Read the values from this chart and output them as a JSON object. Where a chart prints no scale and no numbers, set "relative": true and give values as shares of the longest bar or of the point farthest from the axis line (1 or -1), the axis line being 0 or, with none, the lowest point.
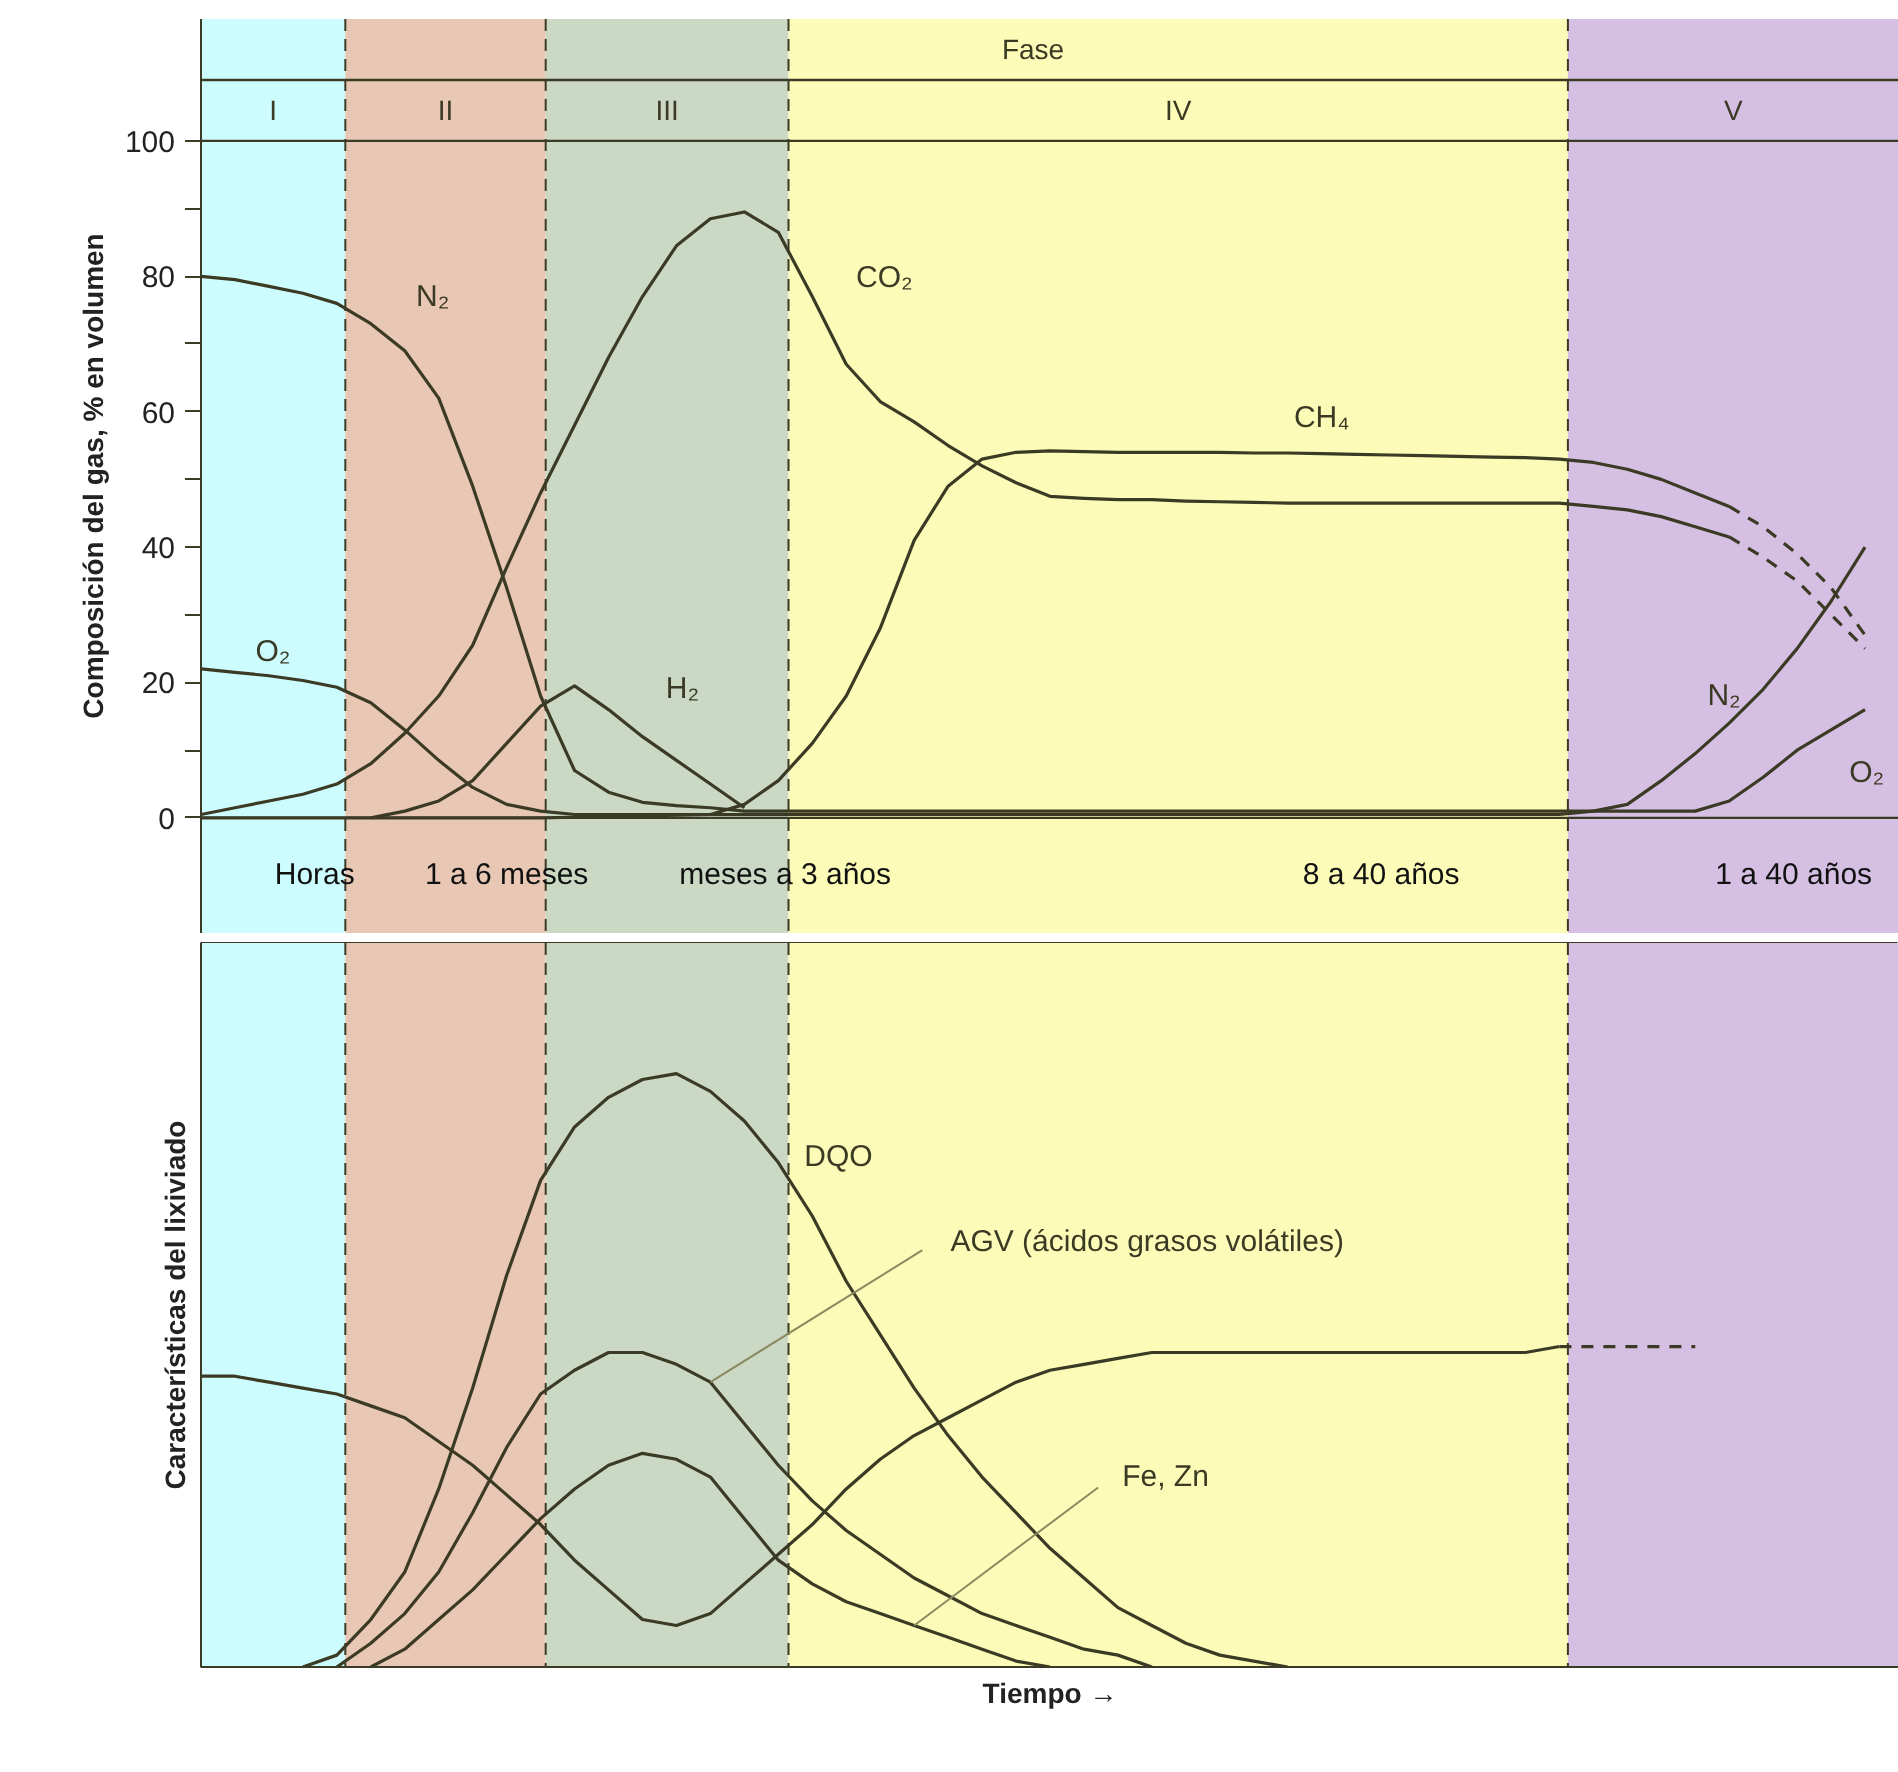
{
  "chart_data": [
    {
      "type": "line",
      "ylabel": "Composición del gas, % en volumen",
      "categories": [
        null,
        null,
        null,
        null,
        null,
        null,
        null,
        null,
        null,
        null,
        null,
        null,
        null,
        null,
        null,
        null,
        null,
        null,
        null,
        null,
        null,
        null,
        null,
        null,
        null,
        null,
        null,
        null,
        null,
        null,
        null,
        null,
        null,
        null,
        null,
        null,
        null,
        null,
        null,
        null,
        null,
        null,
        null,
        null,
        null,
        null,
        null,
        null,
        null,
        null,
        null
      ],
      "ylim": [
        -17,
        118
      ],
      "yticks": [
        0,
        {
          "value": 10,
          "label": null
        },
        20,
        {
          "value": 30,
          "label": null
        },
        40,
        {
          "value": 50,
          "label": null
        },
        60,
        {
          "value": 70,
          "label": null
        },
        80,
        {
          "value": 90,
          "label": null
        },
        100
      ],
      "tick_labels": "y",
      "grid": false,
      "marker": "none",
      "ref_lines": [
        {
          "axis": "y",
          "value": 100,
          "color": "#3b3a24"
        },
        {
          "axis": "y",
          "value": 109,
          "color": "#3b3a24"
        },
        {
          "axis": "y",
          "value": 0,
          "color": "#3b3a24"
        }
      ],
      "series": [
        {
          "name": "O₂",
          "color": "#3b3a24",
          "line_style": "solid",
          "values": [
            22,
            21.5,
            21,
            20.3,
            19.3,
            17,
            13,
            8.5,
            4.5,
            2,
            1,
            0.5,
            0.5,
            0.5,
            0.5,
            0.5,
            0.5,
            0.5,
            0.5,
            0.5,
            0.5,
            0.5,
            0.5,
            0.5,
            0.5,
            0.5,
            0.5,
            0.5,
            0.5,
            0.5,
            0.5,
            0.5,
            0.5,
            0.5,
            0.5,
            0.5,
            0.5,
            0.5,
            0.5,
            0.5,
            0.5,
            1,
            1,
            1,
            1,
            2.5,
            6,
            10,
            13,
            16,
            null
          ]
        },
        {
          "name": "N₂",
          "color": "#3b3a24",
          "line_style": "solid",
          "values": [
            80,
            79.5,
            78.5,
            77.5,
            76,
            73,
            69,
            62,
            49,
            34,
            18,
            7,
            3.8,
            2.3,
            1.8,
            1.5,
            1,
            1,
            1,
            1,
            1,
            1,
            1,
            1,
            1,
            1,
            1,
            1,
            1,
            1,
            1,
            1,
            1,
            1,
            1,
            1,
            1,
            1,
            1,
            1,
            1,
            1,
            2,
            5.5,
            9.5,
            14,
            19,
            25,
            32,
            40,
            null
          ]
        },
        {
          "name": "CO₂",
          "color": "#3b3a24",
          "line_style": "solid",
          "values": [
            0.5,
            1.5,
            2.5,
            3.5,
            5,
            8,
            12.5,
            18,
            25.5,
            37,
            48,
            58,
            68,
            77,
            84.5,
            88.5,
            89.5,
            86.5,
            77,
            67,
            61.5,
            58.5,
            55,
            52,
            49.5,
            47.5,
            47.2,
            47,
            47,
            46.8,
            46.7,
            46.6,
            46.5,
            46.5,
            46.5,
            46.5,
            46.5,
            46.5,
            46.5,
            46.5,
            46.5,
            46,
            45.5,
            44.5,
            43,
            41.5,
            null,
            null,
            null,
            null,
            null
          ]
        },
        {
          "color": "#3b3a24",
          "line_style": "dashed",
          "values": [
            null,
            null,
            null,
            null,
            null,
            null,
            null,
            null,
            null,
            null,
            null,
            null,
            null,
            null,
            null,
            null,
            null,
            null,
            null,
            null,
            null,
            null,
            null,
            null,
            null,
            null,
            null,
            null,
            null,
            null,
            null,
            null,
            null,
            null,
            null,
            null,
            null,
            null,
            null,
            null,
            null,
            null,
            null,
            null,
            null,
            41.5,
            38.5,
            35,
            30,
            25,
            null
          ]
        },
        {
          "name": "CH₄",
          "color": "#3b3a24",
          "line_style": "solid",
          "values": [
            0,
            0,
            0,
            0,
            0,
            0,
            0,
            0,
            0,
            0,
            0,
            0.1,
            0.2,
            0.3,
            0.4,
            0.5,
            2,
            5.5,
            11,
            18,
            28,
            41,
            49,
            53,
            54,
            54.2,
            54.1,
            54,
            54,
            54,
            54,
            53.9,
            53.9,
            53.8,
            53.7,
            53.6,
            53.5,
            53.4,
            53.3,
            53.2,
            53,
            52.5,
            51.5,
            50,
            48,
            46,
            null,
            null,
            null,
            null,
            null
          ]
        },
        {
          "color": "#3b3a24",
          "line_style": "dashed",
          "values": [
            null,
            null,
            null,
            null,
            null,
            null,
            null,
            null,
            null,
            null,
            null,
            null,
            null,
            null,
            null,
            null,
            null,
            null,
            null,
            null,
            null,
            null,
            null,
            null,
            null,
            null,
            null,
            null,
            null,
            null,
            null,
            null,
            null,
            null,
            null,
            null,
            null,
            null,
            null,
            null,
            null,
            null,
            null,
            null,
            null,
            46,
            43,
            39,
            34,
            27,
            null
          ]
        },
        {
          "name": "H₂",
          "color": "#3b3a24",
          "line_style": "solid",
          "values": [
            null,
            null,
            null,
            null,
            null,
            0,
            1,
            2.5,
            5.5,
            11,
            16.5,
            19.5,
            16,
            12,
            8.5,
            5,
            1.5,
            null,
            null,
            null,
            null,
            null,
            null,
            null,
            null,
            null,
            null,
            null,
            null,
            null,
            null,
            null,
            null,
            null,
            null,
            null,
            null,
            null,
            null,
            null,
            null,
            null,
            null,
            null,
            null,
            null,
            null,
            null,
            null,
            null,
            null
          ]
        }
      ],
      "annotations": [
        "Fase",
        "I",
        "II",
        "III",
        "IV",
        "V",
        "Horas",
        "1 a 6 meses",
        "meses a 3 años",
        "8 a 40 años",
        "1 a 40 años",
        "N₂",
        "O₂"
      ]
    },
    {
      "type": "line",
      "relative": true,
      "ylabel": "Características del lixiviado",
      "xlabel": "Tiempo →",
      "categories": [
        null,
        null,
        null,
        null,
        null,
        null,
        null,
        null,
        null,
        null,
        null,
        null,
        null,
        null,
        null,
        null,
        null,
        null,
        null,
        null,
        null,
        null,
        null,
        null,
        null,
        null,
        null,
        null,
        null,
        null,
        null,
        null,
        null,
        null,
        null,
        null,
        null,
        null,
        null,
        null,
        null,
        null,
        null,
        null,
        null,
        null,
        null,
        null,
        null,
        null,
        null
      ],
      "tick_labels": false,
      "grid": false,
      "marker": "none",
      "series": [
        {
          "color": "#3b3a24",
          "line_style": "solid",
          "values": [
            0.49,
            0.49,
            0.48,
            0.47,
            0.46,
            0.44,
            0.42,
            0.38,
            0.34,
            0.29,
            0.24,
            0.18,
            0.13,
            0.08,
            0.07,
            0.09,
            0.14,
            0.19,
            0.24,
            0.3,
            0.35,
            0.39,
            0.42,
            0.45,
            0.48,
            0.5,
            0.51,
            0.52,
            0.53,
            0.53,
            0.53,
            0.53,
            0.53,
            0.53,
            0.53,
            0.53,
            0.53,
            0.53,
            0.53,
            0.53,
            0.54,
            null,
            null,
            null,
            null,
            null,
            null,
            null,
            null,
            null,
            null
          ]
        },
        {
          "color": "#3b3a24",
          "line_style": "dashed",
          "values": [
            null,
            null,
            null,
            null,
            null,
            null,
            null,
            null,
            null,
            null,
            null,
            null,
            null,
            null,
            null,
            null,
            null,
            null,
            null,
            null,
            null,
            null,
            null,
            null,
            null,
            null,
            null,
            null,
            null,
            null,
            null,
            null,
            null,
            null,
            null,
            null,
            null,
            null,
            null,
            null,
            0.54,
            0.54,
            0.54,
            0.54,
            0.54,
            null,
            null,
            null,
            null,
            null,
            null
          ]
        },
        {
          "name": "DQO",
          "color": "#3b3a24",
          "line_style": "solid",
          "values": [
            null,
            null,
            null,
            0,
            0.02,
            0.08,
            0.16,
            0.3,
            0.47,
            0.66,
            0.82,
            0.91,
            0.96,
            0.99,
            1,
            0.97,
            0.92,
            0.85,
            0.76,
            0.65,
            0.56,
            0.47,
            0.39,
            0.32,
            0.26,
            0.2,
            0.15,
            0.1,
            0.07,
            0.04,
            0.02,
            0.01,
            0,
            null,
            null,
            null,
            null,
            null,
            null,
            null,
            null,
            null,
            null,
            null,
            null,
            null,
            null,
            null,
            null,
            null,
            null
          ]
        },
        {
          "name": "AGV (ácidos grasos volátiles)",
          "color": "#3b3a24",
          "line_style": "solid",
          "values": [
            null,
            null,
            null,
            null,
            0,
            0.04,
            0.09,
            0.16,
            0.26,
            0.37,
            0.46,
            0.5,
            0.53,
            0.53,
            0.51,
            0.48,
            0.41,
            0.34,
            0.28,
            0.23,
            0.19,
            0.15,
            0.12,
            0.09,
            0.07,
            0.05,
            0.03,
            0.02,
            0,
            null,
            null,
            null,
            null,
            null,
            null,
            null,
            null,
            null,
            null,
            null,
            null,
            null,
            null,
            null,
            null,
            null,
            null,
            null,
            null,
            null,
            null
          ]
        },
        {
          "name": "Fe, Zn",
          "color": "#3b3a24",
          "line_style": "solid",
          "values": [
            null,
            null,
            null,
            null,
            null,
            0,
            0.03,
            0.08,
            0.13,
            0.19,
            0.25,
            0.3,
            0.34,
            0.36,
            0.35,
            0.32,
            0.25,
            0.18,
            0.14,
            0.11,
            0.09,
            0.07,
            0.05,
            0.03,
            0.01,
            0,
            null,
            null,
            null,
            null,
            null,
            null,
            null,
            null,
            null,
            null,
            null,
            null,
            null,
            null,
            null,
            null,
            null,
            null,
            null,
            null,
            null,
            null,
            null,
            null,
            null
          ]
        }
      ]
    }
  ]
}
